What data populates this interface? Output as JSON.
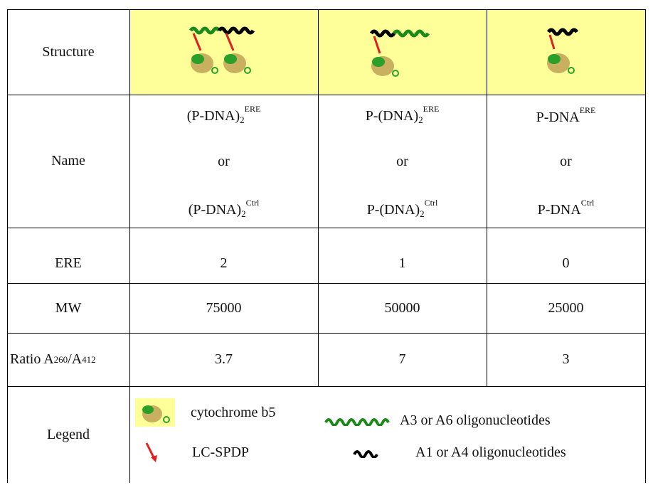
{
  "rows": {
    "structure": {
      "label": "Structure"
    },
    "name": {
      "label": "Name",
      "or": "or",
      "col1": {
        "top_main": "(P-DNA)",
        "top_sub": "2",
        "top_sup": "ERE",
        "bot_main": "(P-DNA)",
        "bot_sub": "2",
        "bot_sup": "Ctrl"
      },
      "col2": {
        "top_main": "P-(DNA)",
        "top_sub": "2",
        "top_sup": "ERE",
        "bot_main": "P-(DNA)",
        "bot_sub": "2",
        "bot_sup": "Ctrl"
      },
      "col3": {
        "top_main": "P-DNA",
        "top_sup": "ERE",
        "bot_main": "P-DNA",
        "bot_sup": "Ctrl"
      }
    },
    "ere": {
      "label": "ERE",
      "values": [
        "2",
        "1",
        "0"
      ]
    },
    "mw": {
      "label": "MW",
      "values": [
        "75000",
        "50000",
        "25000"
      ]
    },
    "ratio": {
      "label_main": "Ratio A",
      "label_sub1": "260",
      "label_mid": "/A",
      "label_sub2": "412",
      "values": [
        "3.7",
        "7",
        "3"
      ]
    },
    "legend": {
      "label": "Legend",
      "items": [
        {
          "icon": "cytochrome-b5-icon",
          "text": "cytochrome b5"
        },
        {
          "icon": "green-wave-icon",
          "text": "A3 or A6 oligonucleotides"
        },
        {
          "icon": "red-arrow-icon",
          "text": "LC-SPDP"
        },
        {
          "icon": "black-wave-icon",
          "text": "A1 or A4 oligonucleotides"
        }
      ]
    }
  },
  "colors": {
    "highlight": "#ffff99",
    "green_dna": "#1a8a1a",
    "black_dna": "#000000",
    "linker": "#e02020"
  }
}
